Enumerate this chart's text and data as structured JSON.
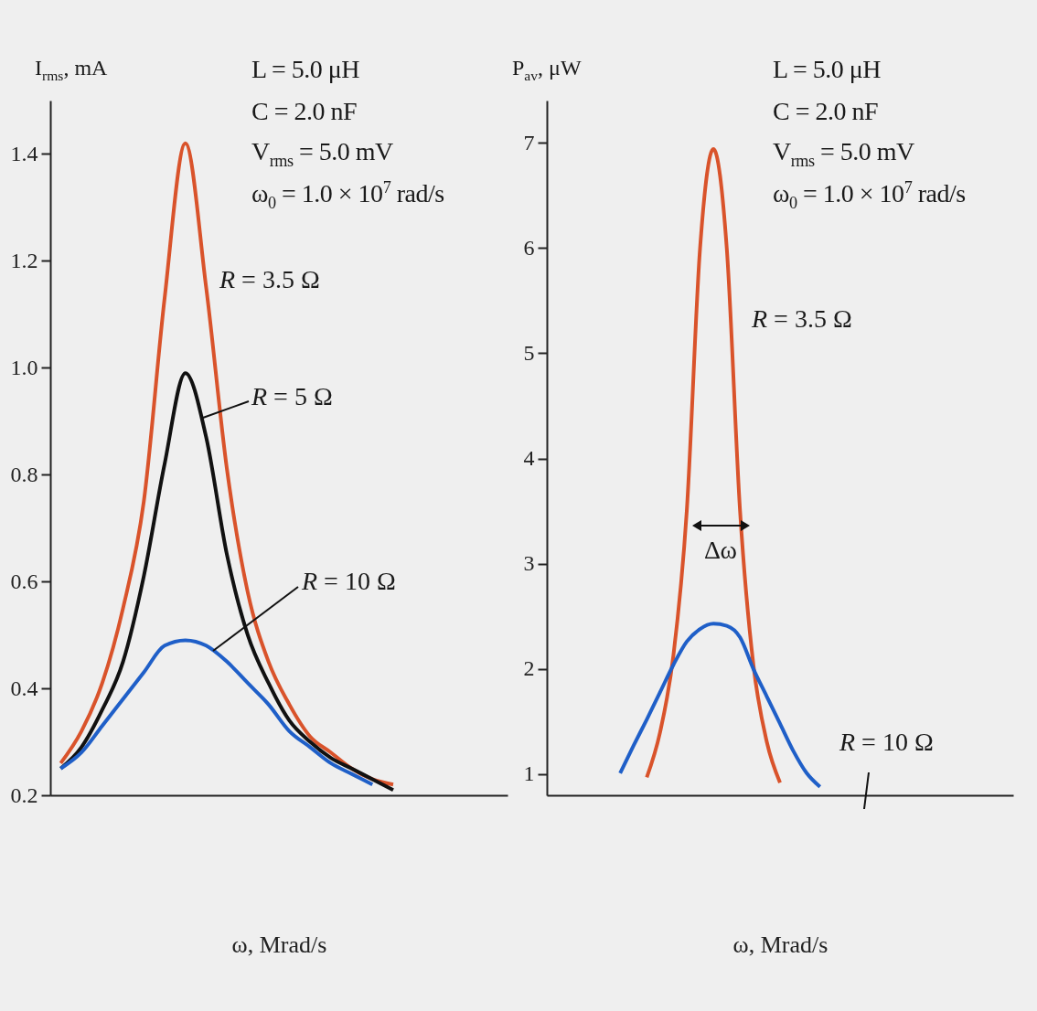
{
  "chart_data": [
    {
      "type": "line",
      "xlabel": "ω, Mrad/s",
      "ylabel": "I$_{rms}$, mA",
      "categories": [
        null,
        null,
        null,
        null,
        null,
        null,
        null,
        null,
        null,
        null,
        null,
        null,
        null,
        null,
        null,
        null,
        null,
        null,
        null,
        null,
        null,
        null
      ],
      "series": [
        {
          "name": "R = 3.5 Ω",
          "color": "#d9532b",
          "values": [
            0.26,
            0.32,
            0.41,
            0.55,
            0.75,
            1.13,
            1.42,
            1.15,
            0.81,
            0.58,
            0.45,
            0.37,
            0.31,
            0.28,
            0.25,
            0.23,
            0.22,
            null,
            null,
            null,
            null,
            null
          ]
        },
        {
          "name": "R = 5 Ω",
          "color": "#111111",
          "values": [
            0.25,
            0.29,
            0.36,
            0.45,
            0.61,
            0.82,
            0.99,
            0.87,
            0.65,
            0.5,
            0.41,
            0.34,
            0.3,
            0.27,
            0.25,
            0.23,
            0.21,
            null,
            null,
            null,
            null,
            null
          ]
        },
        {
          "name": "R = 10 Ω",
          "color": "#1f5fc8",
          "values": [
            0.25,
            0.28,
            0.33,
            0.38,
            0.43,
            0.48,
            0.49,
            0.48,
            0.45,
            0.41,
            0.37,
            0.32,
            0.29,
            0.26,
            0.24,
            0.22,
            null,
            null,
            null,
            null,
            null,
            null
          ]
        }
      ],
      "ylim": [
        0.2,
        1.5
      ],
      "yticks": [
        0.2,
        0.4,
        0.6,
        0.8,
        {
          "value": 1,
          "label": "1.0"
        },
        1.2,
        1.4
      ],
      "tick_labels": "y",
      "annotations": [
        "L = 5.0 μH",
        "C = 2.0 nF",
        "V$_{rms}$ = 5.0 mV",
        "ω$_{0}$ = 1.0 × 10$^{7}$ rad/s"
      ]
    },
    {
      "type": "line",
      "xlabel": "ω, Mrad/s",
      "ylabel": "P$_{av}$, μW",
      "categories": [
        null,
        null,
        null,
        null,
        null,
        null,
        null,
        null,
        null,
        null,
        null,
        null,
        null,
        null,
        null,
        null,
        null,
        null,
        null,
        null,
        null,
        null,
        null,
        null,
        null,
        null,
        null,
        null,
        null,
        null,
        null,
        null,
        null,
        null,
        null
      ],
      "series": [
        {
          "name": "R = 3.5 Ω",
          "color": "#d9532b",
          "values": [
            null,
            null,
            null,
            null,
            null,
            null,
            null,
            0.97,
            1.4,
            2.13,
            3.5,
            6.0,
            6.94,
            6.0,
            3.5,
            2.04,
            1.31,
            0.92,
            null,
            null,
            null,
            null,
            null,
            null,
            null,
            null,
            null,
            null,
            null,
            null,
            null,
            null,
            null,
            null,
            null
          ]
        },
        {
          "name": "R = 10 Ω",
          "color": "#1f5fc8",
          "values": [
            null,
            null,
            null,
            null,
            null,
            1.01,
            1.27,
            1.52,
            1.78,
            2.04,
            2.26,
            2.38,
            2.43,
            2.41,
            2.3,
            2.0,
            1.74,
            1.48,
            1.22,
            1.01,
            0.88,
            null,
            null,
            null,
            null,
            null,
            null,
            null,
            null,
            null,
            null,
            null,
            null,
            null,
            null
          ]
        }
      ],
      "ylim": [
        0.8,
        7.4
      ],
      "yticks": [
        1,
        2,
        3,
        4,
        5,
        6,
        7
      ],
      "tick_labels": "y",
      "annotations": [
        "L = 5.0 μH",
        "C = 2.0 nF",
        "V$_{rms}$ = 5.0 mV",
        "ω$_{0}$ = 1.0 × 10$^{7}$ rad/s",
        "Δω"
      ]
    }
  ]
}
